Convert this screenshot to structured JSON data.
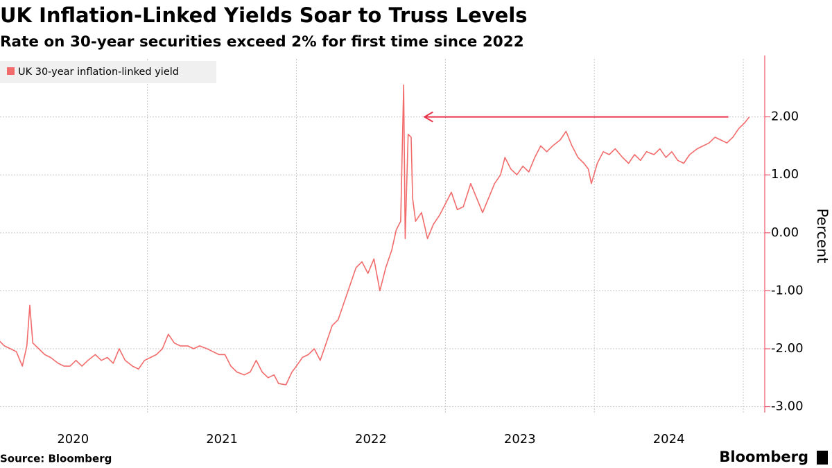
{
  "chart_data": {
    "type": "line",
    "title": "UK Inflation-Linked Yields Soar to Truss Levels",
    "subtitle": "Rate on 30-year securities exceed 2% for first time since 2022",
    "y_axis_label": "Percent",
    "source": "Source: Bloomberg",
    "brand": "Bloomberg",
    "x": [
      2020.0,
      2020.04,
      2020.08,
      2020.12,
      2020.16,
      2020.19,
      2020.21,
      2020.23,
      2020.27,
      2020.31,
      2020.35,
      2020.4,
      2020.44,
      2020.48,
      2020.52,
      2020.56,
      2020.6,
      2020.65,
      2020.69,
      2020.73,
      2020.77,
      2020.81,
      2020.85,
      2020.9,
      2020.94,
      2020.98,
      2021.02,
      2021.06,
      2021.1,
      2021.14,
      2021.18,
      2021.22,
      2021.27,
      2021.31,
      2021.35,
      2021.4,
      2021.44,
      2021.48,
      2021.52,
      2021.56,
      2021.6,
      2021.65,
      2021.69,
      2021.73,
      2021.77,
      2021.81,
      2021.85,
      2021.88,
      2021.93,
      2021.97,
      2022.0,
      2022.04,
      2022.08,
      2022.12,
      2022.16,
      2022.2,
      2022.24,
      2022.28,
      2022.32,
      2022.36,
      2022.4,
      2022.44,
      2022.48,
      2022.52,
      2022.56,
      2022.6,
      2022.64,
      2022.67,
      2022.7,
      2022.72,
      2022.73,
      2022.75,
      2022.77,
      2022.78,
      2022.8,
      2022.84,
      2022.88,
      2022.92,
      2022.96,
      2023.0,
      2023.04,
      2023.08,
      2023.12,
      2023.17,
      2023.21,
      2023.25,
      2023.29,
      2023.33,
      2023.37,
      2023.4,
      2023.44,
      2023.48,
      2023.52,
      2023.56,
      2023.6,
      2023.64,
      2023.68,
      2023.72,
      2023.77,
      2023.81,
      2023.85,
      2023.89,
      2023.93,
      2023.96,
      2023.98,
      2024.02,
      2024.06,
      2024.1,
      2024.14,
      2024.19,
      2024.23,
      2024.27,
      2024.31,
      2024.35,
      2024.4,
      2024.44,
      2024.48,
      2024.52,
      2024.56,
      2024.6,
      2024.64,
      2024.69,
      2024.73,
      2024.77,
      2024.81,
      2024.85,
      2024.89,
      2024.93,
      2024.97,
      2025.01,
      2025.04
    ],
    "series": [
      {
        "name": "UK 30-year inflation-linked yield",
        "color": "#f26b6b",
        "values": [
          -1.85,
          -1.95,
          -2.0,
          -2.05,
          -2.3,
          -1.95,
          -1.25,
          -1.9,
          -2.0,
          -2.1,
          -2.15,
          -2.25,
          -2.3,
          -2.3,
          -2.2,
          -2.3,
          -2.2,
          -2.1,
          -2.2,
          -2.15,
          -2.25,
          -2.0,
          -2.2,
          -2.3,
          -2.35,
          -2.2,
          -2.15,
          -2.1,
          -2.0,
          -1.75,
          -1.9,
          -1.95,
          -1.95,
          -2.0,
          -1.95,
          -2.0,
          -2.05,
          -2.1,
          -2.1,
          -2.3,
          -2.4,
          -2.45,
          -2.4,
          -2.2,
          -2.4,
          -2.5,
          -2.45,
          -2.6,
          -2.62,
          -2.4,
          -2.3,
          -2.15,
          -2.1,
          -2.0,
          -2.2,
          -1.9,
          -1.6,
          -1.5,
          -1.2,
          -0.9,
          -0.6,
          -0.5,
          -0.7,
          -0.45,
          -1.0,
          -0.6,
          -0.3,
          0.05,
          0.2,
          2.55,
          -0.1,
          1.7,
          1.65,
          0.6,
          0.2,
          0.35,
          -0.1,
          0.15,
          0.3,
          0.5,
          0.7,
          0.4,
          0.45,
          0.85,
          0.6,
          0.35,
          0.6,
          0.85,
          1.0,
          1.3,
          1.1,
          1.0,
          1.15,
          1.05,
          1.3,
          1.5,
          1.4,
          1.5,
          1.6,
          1.75,
          1.5,
          1.3,
          1.2,
          1.1,
          0.85,
          1.2,
          1.4,
          1.35,
          1.45,
          1.3,
          1.2,
          1.35,
          1.25,
          1.4,
          1.35,
          1.45,
          1.3,
          1.4,
          1.25,
          1.2,
          1.35,
          1.45,
          1.5,
          1.55,
          1.65,
          1.6,
          1.55,
          1.65,
          1.8,
          1.9,
          2.0
        ]
      }
    ],
    "xlim": [
      2020.01,
      2025.13
    ],
    "xticks": [
      2020,
      2021,
      2022,
      2023,
      2024
    ],
    "ylim": [
      -3.1,
      3.0
    ],
    "yticks": [
      {
        "value": 2,
        "label": "2.00"
      },
      {
        "value": 1,
        "label": "1.00"
      },
      {
        "value": 0,
        "label": "0.00"
      },
      {
        "value": -1,
        "label": "-1.00"
      },
      {
        "value": -2,
        "label": "-2.00"
      },
      {
        "value": -3,
        "label": "-3.00"
      }
    ],
    "grid": true,
    "legend": "top-left",
    "arrow": {
      "x_start": 2024.9,
      "x_end": 2022.86,
      "y": 2,
      "color": "#e8334a"
    }
  }
}
